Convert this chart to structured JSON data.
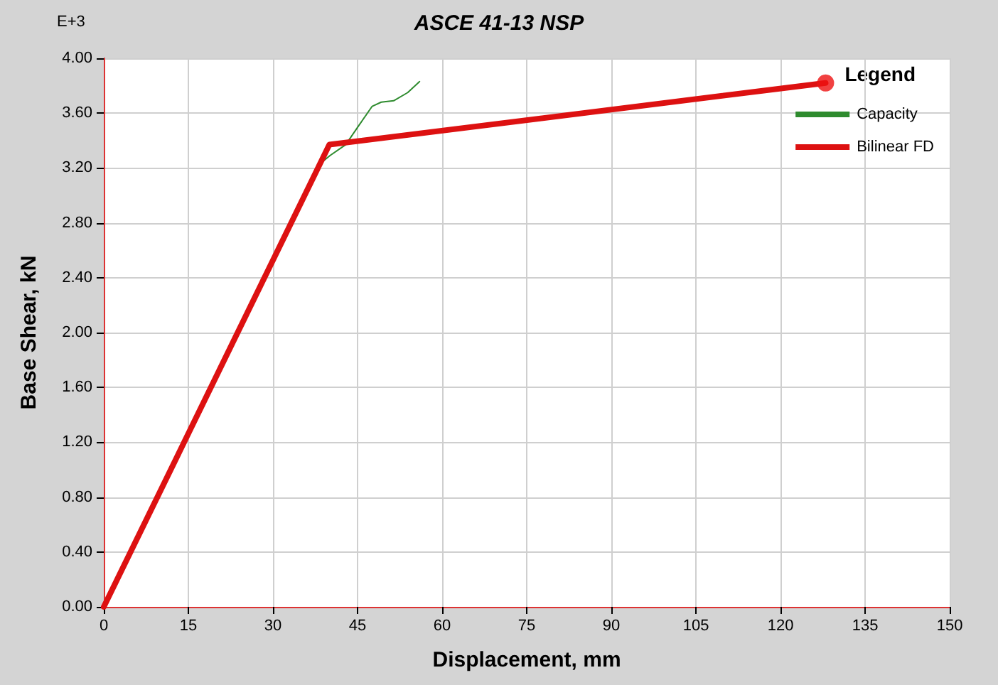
{
  "chart_data": {
    "type": "line",
    "title": "ASCE 41-13 NSP",
    "xlabel": "Displacement, mm",
    "ylabel": "Base Shear, kN",
    "legend_title": "Legend",
    "annotations": [
      "E+3"
    ],
    "xlim": [
      0,
      150
    ],
    "xticks": [
      0,
      15,
      30,
      45,
      60,
      75,
      90,
      105,
      120,
      135,
      150
    ],
    "ylim": [
      0,
      4
    ],
    "yticks": [
      {
        "value": 0,
        "label": "0.00"
      },
      {
        "value": 0.4,
        "label": "0.40"
      },
      {
        "value": 0.8,
        "label": "0.80"
      },
      {
        "value": 1.2,
        "label": "1.20"
      },
      {
        "value": 1.6,
        "label": "1.60"
      },
      {
        "value": 2,
        "label": "2.00"
      },
      {
        "value": 2.4,
        "label": "2.40"
      },
      {
        "value": 2.8,
        "label": "2.80"
      },
      {
        "value": 3.2,
        "label": "3.20"
      },
      {
        "value": 3.6,
        "label": "3.60"
      },
      {
        "value": 4,
        "label": "4.00"
      }
    ],
    "grid": true,
    "legend": "top right",
    "marker": "none",
    "line_style": "solid",
    "series": [
      {
        "name": "Capacity",
        "color": "#2e8b2e",
        "x": [
          38.3,
          40.1,
          42.9,
          45.4,
          47.6,
          49.2,
          51.4,
          53.9,
          56
        ],
        "values": [
          3.23,
          3.29,
          3.37,
          3.52,
          3.65,
          3.68,
          3.69,
          3.75,
          3.83
        ]
      },
      {
        "name": "Bilinear FD",
        "color": "#dd1111",
        "x": [
          0,
          40,
          128
        ],
        "values": [
          0,
          3.37,
          3.82
        ]
      },
      {
        "type": "scatter",
        "marker": "circle",
        "color": "#ee1111",
        "x": [
          128
        ],
        "values": [
          3.82
        ]
      }
    ]
  }
}
